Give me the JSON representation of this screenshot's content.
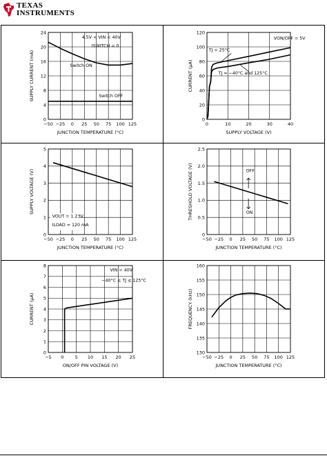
{
  "header": {
    "brand_line1": "TEXAS",
    "brand_line2": "INSTRUMENTS"
  },
  "chart_data": [
    {
      "id": "c1",
      "type": "line",
      "xlabel": "JUNCTION TEMPERATURE (°C)",
      "ylabel": "SUPPLY CURRENT (mA)",
      "xlim": [
        -50,
        125
      ],
      "ylim": [
        0,
        24
      ],
      "xticks": [
        -50,
        -25,
        0,
        25,
        50,
        75,
        100,
        125
      ],
      "yticks": [
        0,
        4,
        8,
        12,
        16,
        20,
        24
      ],
      "xtick_labels": [
        "−50",
        "−25",
        "0",
        "25",
        "50",
        "75",
        "100",
        "125"
      ],
      "ytick_labels": [
        "0",
        "4",
        "8",
        "12",
        "16",
        "20",
        "24"
      ],
      "grid": true,
      "series": [
        {
          "name": "Switch ON",
          "x": [
            -50,
            -25,
            0,
            25,
            50,
            75,
            100,
            125
          ],
          "y": [
            21.3,
            19.6,
            18.1,
            16.7,
            15.6,
            15.0,
            15.0,
            15.4
          ]
        },
        {
          "name": "Switch OFF",
          "x": [
            -50,
            125
          ],
          "y": [
            5.0,
            5.0
          ]
        }
      ],
      "annotations": [
        {
          "text": "4.5V < VIN < 40V",
          "x": 20,
          "y": 22.3
        },
        {
          "text": "ISWITCH = 0",
          "x": 40,
          "y": 19.9
        },
        {
          "text": "Switch ON",
          "x": -5,
          "y": 14.5
        },
        {
          "text": "Switch OFF",
          "x": 55,
          "y": 6.1
        }
      ]
    },
    {
      "id": "c2",
      "type": "line",
      "xlabel": "SUPPLY VOLTAGE (V)",
      "ylabel": "CURRENT (µA)",
      "xlim": [
        0,
        40
      ],
      "ylim": [
        0,
        120
      ],
      "xticks": [
        0,
        10,
        20,
        30,
        40
      ],
      "yticks": [
        0,
        20,
        40,
        60,
        80,
        100,
        120
      ],
      "xtick_labels": [
        "0",
        "10",
        "20",
        "30",
        "40"
      ],
      "ytick_labels": [
        "0",
        "20",
        "40",
        "60",
        "80",
        "100",
        "120"
      ],
      "grid": true,
      "series": [
        {
          "name": "TJ = 25°C",
          "x": [
            0,
            0.5,
            1.2,
            1.8,
            2.2,
            3,
            5,
            10,
            20,
            30,
            40
          ],
          "y": [
            0,
            5,
            45,
            52,
            72,
            76,
            78,
            81,
            87,
            93,
            99
          ]
        },
        {
          "name": "TJ = −40°C and 125°C",
          "x": [
            0,
            0.5,
            1.2,
            1.8,
            2.2,
            3,
            5,
            10,
            20,
            30,
            40
          ],
          "y": [
            0,
            5,
            45,
            52,
            66,
            69,
            71,
            73,
            78,
            83,
            89
          ]
        }
      ],
      "annotations": [
        {
          "text": "VON/OFF = 5V",
          "x": 32,
          "y": 110
        },
        {
          "text": "TJ = 25°C",
          "x": 11,
          "y": 94
        },
        {
          "text": "TJ = −40°C and 125°C",
          "x": 29,
          "y": 62
        }
      ]
    },
    {
      "id": "c3",
      "type": "line",
      "xlabel": "JUNCTION TEMPERATURE (°C)",
      "ylabel": "SUPPLY VOLTAGE (V)",
      "xlim": [
        -50,
        125
      ],
      "ylim": [
        0,
        5
      ],
      "xticks": [
        -50,
        -25,
        0,
        25,
        50,
        75,
        100,
        125
      ],
      "yticks": [
        0,
        1,
        2,
        3,
        4,
        5
      ],
      "xtick_labels": [
        "−50",
        "−25",
        "0",
        "25",
        "50",
        "75",
        "100",
        "125"
      ],
      "ytick_labels": [
        "0",
        "1",
        "2",
        "3",
        "4",
        "5"
      ],
      "grid": true,
      "series": [
        {
          "name": "",
          "x": [
            -40,
            125
          ],
          "y": [
            4.2,
            2.8
          ]
        }
      ],
      "annotations": [
        {
          "text": "VOUT = 1.23V",
          "x": -42,
          "y": 0.98
        },
        {
          "text": "ILOAD = 120 mA",
          "x": -42,
          "y": 0.48
        }
      ]
    },
    {
      "id": "c4",
      "type": "line",
      "xlabel": "JUNCTION TEMPERATURE (°C)",
      "ylabel": "THRESHOLD VOLTAGE (V)",
      "xlim": [
        -50,
        125
      ],
      "ylim": [
        0,
        2.5
      ],
      "xticks": [
        -50,
        -25,
        0,
        25,
        50,
        75,
        100,
        125
      ],
      "yticks": [
        0,
        0.5,
        1.0,
        1.5,
        2.0,
        2.5
      ],
      "xtick_labels": [
        "−50",
        "−25",
        "0",
        "25",
        "50",
        "75",
        "100",
        "125"
      ],
      "ytick_labels": [
        "0",
        "0.5",
        "1.0",
        "1.5",
        "2.0",
        "2.5"
      ],
      "grid": true,
      "series": [
        {
          "name": "",
          "x": [
            -35,
            120
          ],
          "y": [
            1.55,
            0.9
          ]
        }
      ],
      "annotations": [
        {
          "text": "OFF",
          "x": 32,
          "y": 1.82
        },
        {
          "text": "ON",
          "x": 32,
          "y": 0.6
        }
      ]
    },
    {
      "id": "c5",
      "type": "line",
      "xlabel": "ON/OFF PIN VOLTAGE (V)",
      "ylabel": "CURRENT (µA)",
      "xlim": [
        -5,
        25
      ],
      "ylim": [
        0,
        8
      ],
      "xticks": [
        -5,
        0,
        5,
        10,
        15,
        20,
        25
      ],
      "yticks": [
        0,
        1,
        2,
        3,
        4,
        5,
        6,
        7,
        8
      ],
      "xtick_labels": [
        "−5",
        "0",
        "5",
        "10",
        "15",
        "20",
        "25"
      ],
      "ytick_labels": [
        "0",
        "1",
        "2",
        "3",
        "4",
        "5",
        "6",
        "7",
        "8"
      ],
      "grid": true,
      "series": [
        {
          "name": "",
          "x": [
            0.8,
            0.8,
            1.5,
            25
          ],
          "y": [
            0,
            4.0,
            4.1,
            5.0
          ]
        }
      ],
      "annotations": [
        {
          "text": "VIN = 40V",
          "x": 17,
          "y": 7.45
        },
        {
          "text": "−40°C ≤ TJ ≤ 125°C",
          "x": 14,
          "y": 6.5
        }
      ]
    },
    {
      "id": "c6",
      "type": "line",
      "xlabel": "JUNCTION TEMPERATURE (°C)",
      "ylabel": "FREQUENCY (kHz)",
      "xlim": [
        -50,
        125
      ],
      "ylim": [
        130,
        160
      ],
      "xticks": [
        -50,
        -25,
        0,
        25,
        50,
        75,
        100,
        125
      ],
      "yticks": [
        130,
        135,
        140,
        145,
        150,
        155,
        160
      ],
      "xtick_labels": [
        "−50",
        "−25",
        "0",
        "25",
        "50",
        "75",
        "100",
        "125"
      ],
      "ytick_labels": [
        "130",
        "135",
        "140",
        "145",
        "150",
        "155",
        "160"
      ],
      "grid": true,
      "series": [
        {
          "name": "",
          "x": [
            -40,
            -25,
            -10,
            0,
            10,
            25,
            40,
            55,
            70,
            85,
            100,
            115,
            125
          ],
          "y": [
            142.2,
            145.5,
            147.9,
            149.0,
            149.8,
            150.3,
            150.5,
            150.3,
            149.7,
            148.6,
            146.9,
            145.0,
            145.0
          ]
        }
      ],
      "annotations": []
    }
  ]
}
